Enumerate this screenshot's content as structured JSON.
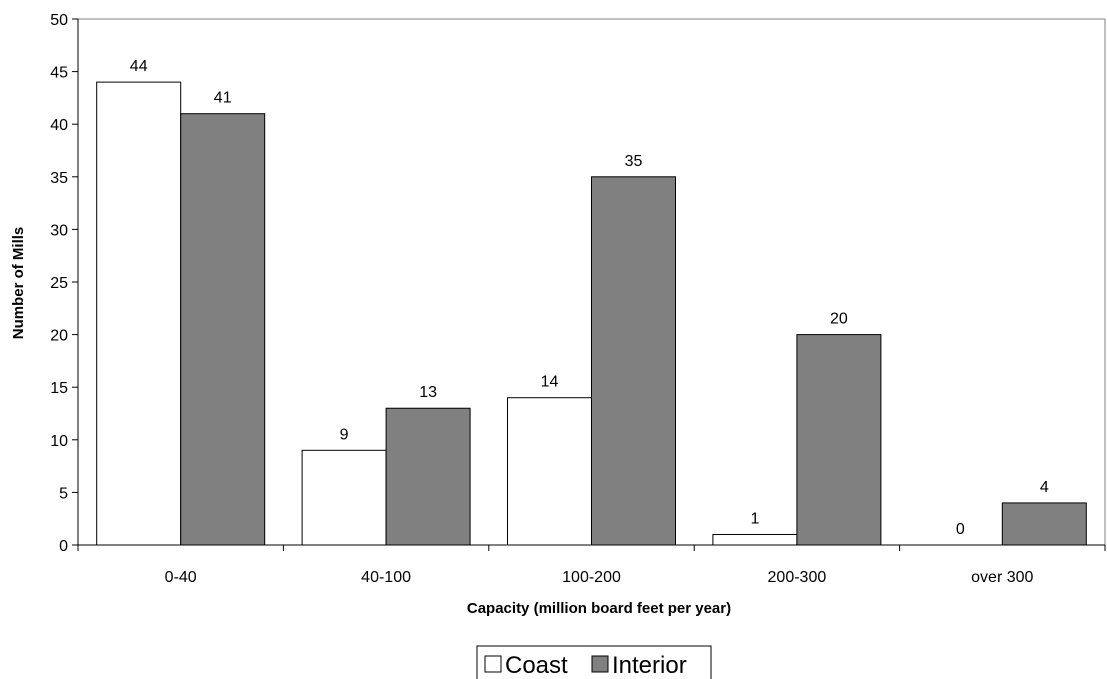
{
  "chart_data": {
    "type": "bar",
    "title": "",
    "xlabel": "Capacity (million board feet per year)",
    "ylabel": "Number of Mills",
    "ylim": [
      0,
      50
    ],
    "ytick_step": 5,
    "grid": false,
    "legend_position": "bottom",
    "categories": [
      "0-40",
      "40-100",
      "100-200",
      "200-300",
      "over 300"
    ],
    "series": [
      {
        "name": "Coast",
        "color": "#ffffff",
        "values": [
          44,
          9,
          14,
          1,
          0
        ]
      },
      {
        "name": "Interior",
        "color": "#808080",
        "values": [
          41,
          13,
          35,
          20,
          4
        ]
      }
    ]
  }
}
